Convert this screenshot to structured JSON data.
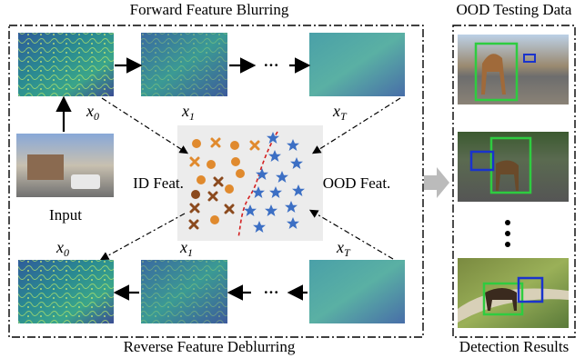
{
  "forward_title": "Forward Feature Blurring",
  "reverse_title": "Reverse Feature Deblurring",
  "ood_data_title": "OOD Testing Data",
  "detection_title": "Detection Results",
  "input_label": "Input",
  "id_feat_label": "ID Feat.",
  "ood_feat_label": "OOD Feat.",
  "ellipsis": "···",
  "top_labels": [
    {
      "base": "x",
      "sub": "0"
    },
    {
      "base": "x",
      "sub": "1"
    },
    {
      "base": "x",
      "sub": "T"
    }
  ],
  "bottom_labels": [
    {
      "base": "x",
      "sub": "0"
    },
    {
      "base": "x",
      "sub": "1"
    },
    {
      "base": "x",
      "sub": "T"
    }
  ]
}
